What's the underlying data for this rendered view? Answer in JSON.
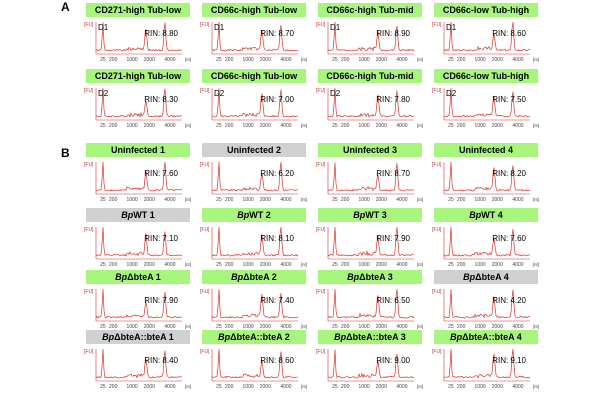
{
  "colors": {
    "trace": "#d9342b",
    "axis": "#c8383a",
    "ok": "#a8f57e",
    "low": "#d0d0d0"
  },
  "panel_labels": [
    "A",
    "B"
  ],
  "chart_data": {
    "type": "line",
    "x_unit": "[nt]",
    "y_unit": "[FU]",
    "x_tick_labels": [
      "25",
      "200",
      "1000",
      "2000",
      "4000"
    ],
    "sections": [
      {
        "label": "A",
        "rows": [
          [
            {
              "title": "CD271-high Tub-low",
              "donor": "D1",
              "rin": "RIN: 8.80",
              "status": "ok"
            },
            {
              "title": "CD66c-high Tub-low",
              "donor": "D1",
              "rin": "RIN: 8.70",
              "status": "ok"
            },
            {
              "title": "CD66c-high Tub-mid",
              "donor": "D1",
              "rin": "RIN: 8.90",
              "status": "ok"
            },
            {
              "title": "CD66c-low Tub-high",
              "donor": "D1",
              "rin": "RIN: 8.60",
              "status": "ok"
            }
          ],
          [
            {
              "title": "CD271-high Tub-low",
              "donor": "D2",
              "rin": "RIN: 8.30",
              "status": "ok"
            },
            {
              "title": "CD66c-high Tub-low",
              "donor": "D2",
              "rin": "RIN: 7.00",
              "status": "ok"
            },
            {
              "title": "CD66c-high Tub-mid",
              "donor": "D2",
              "rin": "RIN: 7.80",
              "status": "ok"
            },
            {
              "title": "CD66c-low Tub-high",
              "donor": "D2",
              "rin": "RIN: 7.50",
              "status": "ok"
            }
          ]
        ]
      },
      {
        "label": "B",
        "rows": [
          [
            {
              "title": "Uninfected 1",
              "rin": "RIN: 7.60",
              "status": "ok"
            },
            {
              "title": "Uninfected 2",
              "rin": "RIN: 6.20",
              "status": "low"
            },
            {
              "title": "Uninfected 3",
              "rin": "RIN: 8.70",
              "status": "ok"
            },
            {
              "title": "Uninfected 4",
              "rin": "RIN: 8.20",
              "status": "ok"
            }
          ],
          [
            {
              "title_italic": "Bp",
              "title": " WT 1",
              "rin": "RIN: 7.10",
              "status": "low"
            },
            {
              "title_italic": "Bp",
              "title": " WT 2",
              "rin": "RIN: 8.10",
              "status": "ok"
            },
            {
              "title_italic": "Bp",
              "title": " WT 3",
              "rin": "RIN: 7.90",
              "status": "ok"
            },
            {
              "title_italic": "Bp",
              "title": " WT 4",
              "rin": "RIN: 7.60",
              "status": "ok"
            }
          ],
          [
            {
              "title_italic": "Bp",
              "title": " ΔbteA 1",
              "rin": "RIN: 7.90",
              "status": "ok"
            },
            {
              "title_italic": "Bp",
              "title": " ΔbteA 2",
              "rin": "RIN: 7.40",
              "status": "ok"
            },
            {
              "title_italic": "Bp",
              "title": " ΔbteA 3",
              "rin": "RIN: 6.50",
              "status": "ok"
            },
            {
              "title_italic": "Bp",
              "title": " ΔbteA 4",
              "rin": "RIN: 4.20",
              "status": "low"
            }
          ],
          [
            {
              "title_italic": "Bp",
              "title": " ΔbteA::bteA 1",
              "rin": "RIN: 8.40",
              "status": "low"
            },
            {
              "title_italic": "Bp",
              "title": " ΔbteA::bteA 2",
              "rin": "RIN: 8.60",
              "status": "ok"
            },
            {
              "title_italic": "Bp",
              "title": " ΔbteA::bteA 3",
              "rin": "RIN: 9.00",
              "status": "ok"
            },
            {
              "title_italic": "Bp",
              "title": " ΔbteA::bteA 4",
              "rin": "RIN: 9.10",
              "status": "ok"
            }
          ]
        ]
      }
    ]
  }
}
